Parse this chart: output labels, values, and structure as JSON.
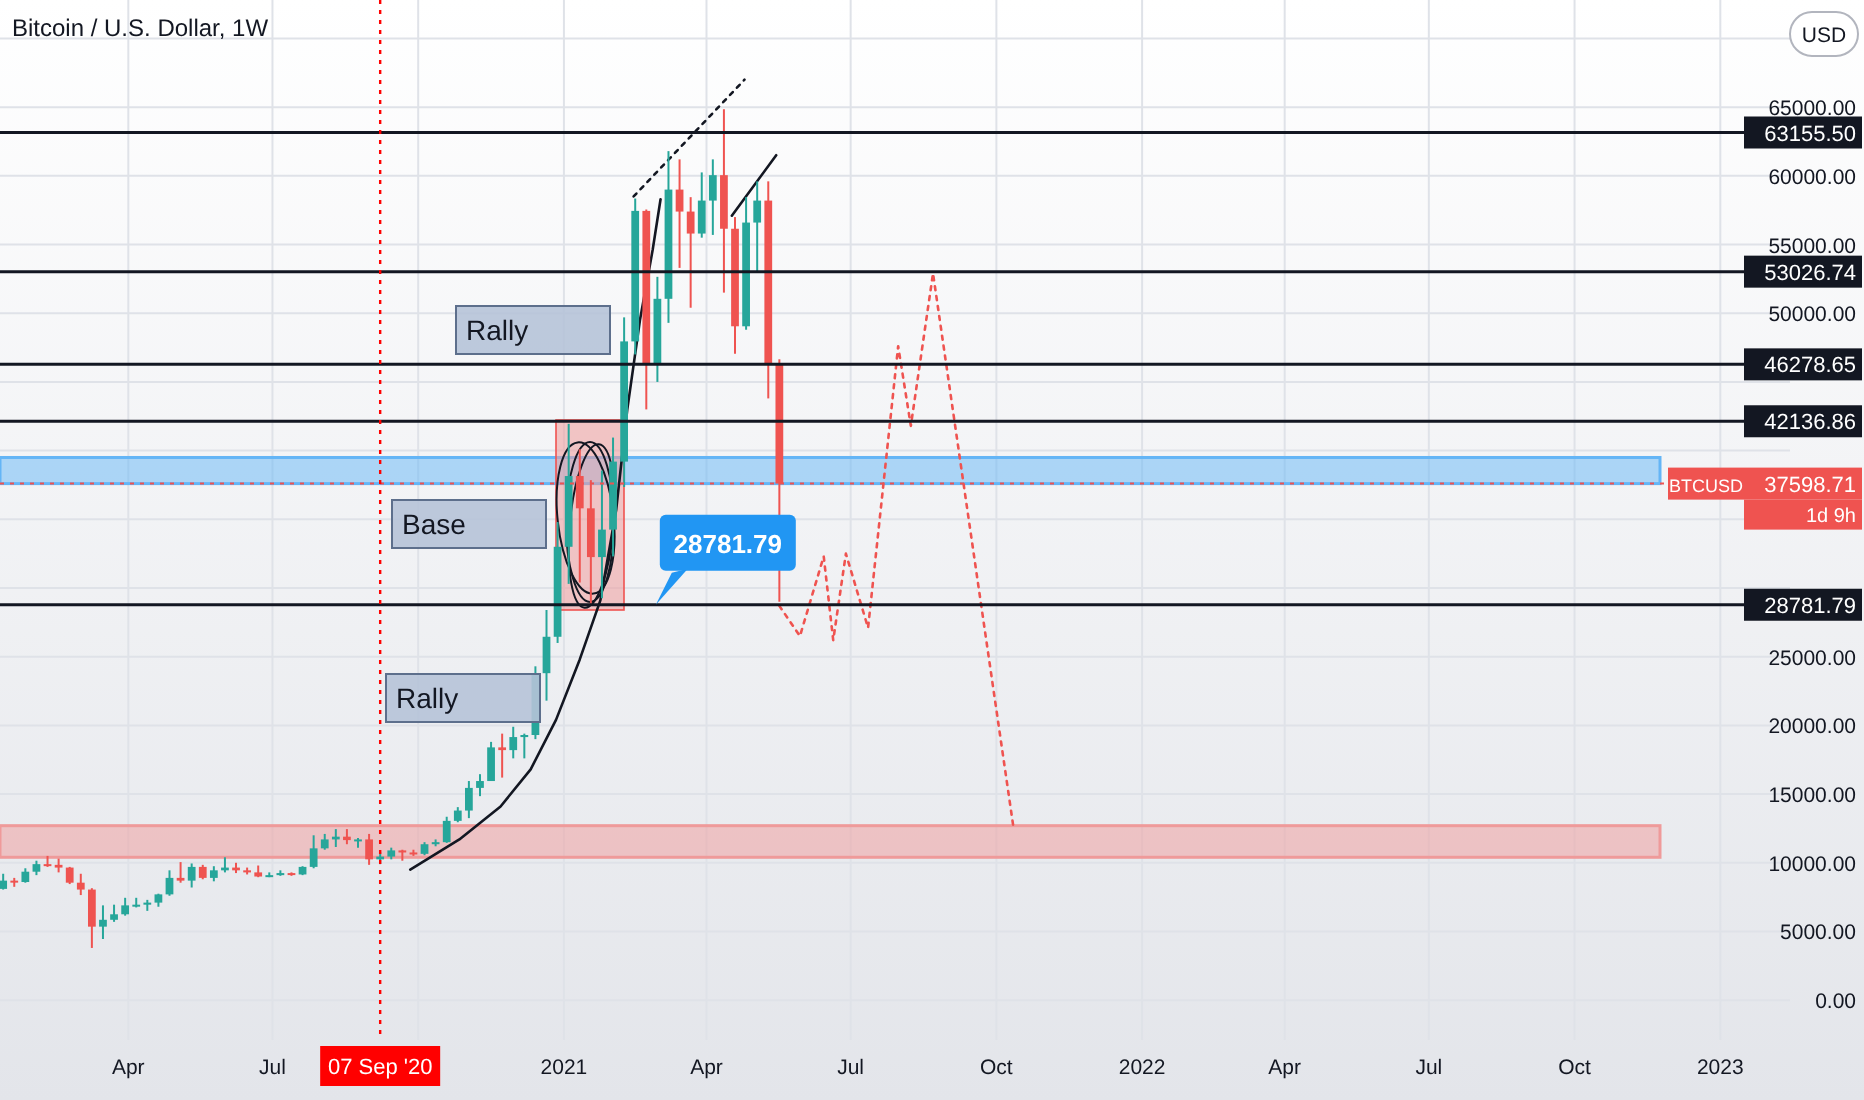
{
  "chart_data": {
    "type": "candlestick",
    "title": "Bitcoin / U.S. Dollar, 1W",
    "x": [
      "2020-01-13",
      "2020-01-20",
      "2020-01-27",
      "2020-02-03",
      "2020-02-10",
      "2020-02-17",
      "2020-02-24",
      "2020-03-02",
      "2020-03-09",
      "2020-03-16",
      "2020-03-23",
      "2020-03-30",
      "2020-04-06",
      "2020-04-13",
      "2020-04-20",
      "2020-04-27",
      "2020-05-04",
      "2020-05-11",
      "2020-05-18",
      "2020-05-25",
      "2020-06-01",
      "2020-06-08",
      "2020-06-15",
      "2020-06-22",
      "2020-06-29",
      "2020-07-06",
      "2020-07-13",
      "2020-07-20",
      "2020-07-27",
      "2020-08-03",
      "2020-08-10",
      "2020-08-17",
      "2020-08-24",
      "2020-08-31",
      "2020-09-07",
      "2020-09-14",
      "2020-09-21",
      "2020-09-28",
      "2020-10-05",
      "2020-10-12",
      "2020-10-19",
      "2020-10-26",
      "2020-11-02",
      "2020-11-09",
      "2020-11-16",
      "2020-11-23",
      "2020-11-30",
      "2020-12-07",
      "2020-12-14",
      "2020-12-21",
      "2020-12-28",
      "2021-01-04",
      "2021-01-11",
      "2021-01-18",
      "2021-01-25",
      "2021-02-01",
      "2021-02-08",
      "2021-02-15",
      "2021-02-22",
      "2021-03-01",
      "2021-03-08",
      "2021-03-15",
      "2021-03-22",
      "2021-03-29",
      "2021-04-05",
      "2021-04-12",
      "2021-04-19",
      "2021-04-26",
      "2021-05-03",
      "2021-05-10",
      "2021-05-17"
    ],
    "ohlc": [
      [
        8100,
        9200,
        8050,
        8700
      ],
      [
        8700,
        8900,
        8250,
        8600
      ],
      [
        8600,
        9600,
        8550,
        9350
      ],
      [
        9350,
        10150,
        9100,
        9900
      ],
      [
        9900,
        10500,
        9700,
        9850
      ],
      [
        9850,
        10300,
        9300,
        9650
      ],
      [
        9650,
        9700,
        8450,
        8550
      ],
      [
        8550,
        9200,
        7650,
        8050
      ],
      [
        8050,
        8150,
        3800,
        5350
      ],
      [
        5350,
        6900,
        4450,
        5850
      ],
      [
        5850,
        6950,
        5700,
        6250
      ],
      [
        6250,
        7450,
        6150,
        6900
      ],
      [
        6900,
        7450,
        6750,
        6950
      ],
      [
        6950,
        7300,
        6500,
        7100
      ],
      [
        7100,
        7750,
        6800,
        7700
      ],
      [
        7700,
        9450,
        7600,
        8900
      ],
      [
        8900,
        10050,
        8550,
        8700
      ],
      [
        8700,
        9950,
        8200,
        9700
      ],
      [
        9700,
        9850,
        8800,
        8900
      ],
      [
        8900,
        9750,
        8650,
        9450
      ],
      [
        9450,
        10400,
        9300,
        9650
      ],
      [
        9650,
        10000,
        9250,
        9450
      ],
      [
        9450,
        9650,
        9150,
        9300
      ],
      [
        9300,
        9800,
        8950,
        9000
      ],
      [
        9000,
        9300,
        8950,
        9100
      ],
      [
        9100,
        9450,
        9050,
        9250
      ],
      [
        9250,
        9300,
        9050,
        9150
      ],
      [
        9150,
        9750,
        9100,
        9700
      ],
      [
        9700,
        12000,
        9600,
        11050
      ],
      [
        11050,
        12100,
        10950,
        11700
      ],
      [
        11700,
        12450,
        11150,
        11900
      ],
      [
        11900,
        12450,
        11350,
        11650
      ],
      [
        11650,
        11800,
        11100,
        11700
      ],
      [
        11700,
        12100,
        9850,
        10250
      ],
      [
        10250,
        10800,
        9900,
        10450
      ],
      [
        10450,
        11100,
        10250,
        10900
      ],
      [
        10900,
        10950,
        10150,
        10750
      ],
      [
        10750,
        10950,
        10500,
        10650
      ],
      [
        10650,
        11500,
        10550,
        11350
      ],
      [
        11350,
        11700,
        11200,
        11500
      ],
      [
        11500,
        13350,
        11450,
        13050
      ],
      [
        13050,
        14050,
        12950,
        13800
      ],
      [
        13800,
        15950,
        13250,
        15450
      ],
      [
        15450,
        16450,
        14850,
        15950
      ],
      [
        15950,
        18800,
        15950,
        18400
      ],
      [
        18400,
        19400,
        16200,
        18200
      ],
      [
        18200,
        19900,
        17600,
        19150
      ],
      [
        19150,
        19400,
        17600,
        19300
      ],
      [
        19300,
        24300,
        19000,
        23800
      ],
      [
        23800,
        28400,
        21800,
        26450
      ],
      [
        26450,
        34800,
        26000,
        33000
      ],
      [
        33000,
        41950,
        30300,
        38150
      ],
      [
        38150,
        40100,
        30400,
        35800
      ],
      [
        35800,
        37850,
        28800,
        32250
      ],
      [
        32250,
        38550,
        29250,
        34250
      ],
      [
        34250,
        40950,
        32300,
        39200
      ],
      [
        39200,
        49700,
        37350,
        47950
      ],
      [
        47950,
        58350,
        47000,
        57450
      ],
      [
        57450,
        57550,
        43000,
        46250
      ],
      [
        46250,
        52650,
        45000,
        51050
      ],
      [
        51050,
        61800,
        49300,
        59000
      ],
      [
        59000,
        61200,
        53300,
        57400
      ],
      [
        57400,
        58450,
        50400,
        55800
      ],
      [
        55800,
        60250,
        55500,
        58200
      ],
      [
        58200,
        61200,
        55700,
        60050
      ],
      [
        60050,
        64850,
        51500,
        56150
      ],
      [
        56150,
        57000,
        47050,
        49050
      ],
      [
        49050,
        58450,
        48800,
        56600
      ],
      [
        56600,
        59600,
        53000,
        58200
      ],
      [
        58200,
        59600,
        43800,
        46300
      ],
      [
        46300,
        46650,
        29000,
        37598.71
      ]
    ],
    "colors": [
      "#26a69a",
      "#ef5350",
      "#26a69a",
      "#26a69a",
      "#ef5350",
      "#ef5350",
      "#ef5350",
      "#ef5350",
      "#ef5350",
      "#26a69a",
      "#26a69a",
      "#26a69a",
      "#26a69a",
      "#26a69a",
      "#26a69a",
      "#26a69a",
      "#ef5350",
      "#26a69a",
      "#ef5350",
      "#26a69a",
      "#26a69a",
      "#ef5350",
      "#ef5350",
      "#ef5350",
      "#26a69a",
      "#26a69a",
      "#ef5350",
      "#26a69a",
      "#26a69a",
      "#26a69a",
      "#26a69a",
      "#ef5350",
      "#26a69a",
      "#ef5350",
      "#26a69a",
      "#26a69a",
      "#ef5350",
      "#ef5350",
      "#26a69a",
      "#26a69a",
      "#26a69a",
      "#26a69a",
      "#26a69a",
      "#26a69a",
      "#26a69a",
      "#ef5350",
      "#26a69a",
      "#26a69a",
      "#26a69a",
      "#26a69a",
      "#26a69a",
      "#26a69a",
      "#ef5350",
      "#ef5350",
      "#26a69a",
      "#26a69a",
      "#26a69a",
      "#26a69a",
      "#ef5350",
      "#26a69a",
      "#26a69a",
      "#ef5350",
      "#ef5350",
      "#26a69a",
      "#26a69a",
      "#ef5350",
      "#ef5350",
      "#26a69a",
      "#26a69a",
      "#ef5350",
      "#ef5350"
    ],
    "series": [
      {
        "type": "line",
        "color": "#131722",
        "line_style": "solid",
        "x": [
          "2020-09-26",
          "2020-10-27",
          "2020-11-22",
          "2020-12-11",
          "2020-12-27",
          "2021-01-11",
          "2021-01-24",
          "2021-02-03",
          "2021-02-10",
          "2021-02-18",
          "2021-02-26",
          "2021-03-03"
        ],
        "values": [
          9500,
          11700,
          14100,
          16800,
          20400,
          24800,
          29100,
          35700,
          43000,
          49500,
          54600,
          58300
        ]
      },
      {
        "type": "line",
        "color": "#131722",
        "line_style": "dotted",
        "x": [
          "2021-02-14",
          "2021-04-25"
        ],
        "values": [
          58500,
          67000
        ]
      },
      {
        "type": "line",
        "color": "#131722",
        "line_style": "solid",
        "x": [
          "2021-04-17",
          "2021-05-15"
        ],
        "values": [
          57100,
          61500
        ]
      },
      {
        "type": "line",
        "color": "#ef5350",
        "line_style": "dotted",
        "x": [
          "2021-05-17",
          "2021-05-30",
          "2021-06-14",
          "2021-06-20",
          "2021-06-28",
          "2021-07-12",
          "2021-07-31",
          "2021-08-08",
          "2021-08-22",
          "2021-10-12"
        ],
        "values": [
          28700,
          26500,
          32300,
          26200,
          32500,
          27100,
          47600,
          41800,
          52900,
          12400
        ]
      }
    ],
    "ref_lines": [
      {
        "axis": "y",
        "value": 63155.5,
        "label": "63155.50",
        "color": "#131722",
        "line_style": "solid"
      },
      {
        "axis": "y",
        "value": 53026.74,
        "label": "53026.74",
        "color": "#131722",
        "line_style": "solid"
      },
      {
        "axis": "y",
        "value": 46278.65,
        "label": "46278.65",
        "color": "#131722",
        "line_style": "solid"
      },
      {
        "axis": "y",
        "value": 42136.86,
        "label": "42136.86",
        "color": "#131722",
        "line_style": "solid"
      },
      {
        "axis": "y",
        "value": 28781.79,
        "label": "28781.79",
        "color": "#131722",
        "line_style": "solid"
      },
      {
        "axis": "y",
        "value": 37598.71,
        "label": "37598.71",
        "color": "#ef5350",
        "line_style": "dotted"
      },
      {
        "axis": "x",
        "value": "2020-09-07",
        "label": "07 Sep '20",
        "color": "#ff0000",
        "line_style": "dotted"
      }
    ],
    "bands": [
      {
        "axis": "y",
        "from": 37598.71,
        "to": 39500,
        "color": "#64b5f6"
      },
      {
        "axis": "y",
        "from": 10400,
        "to": 12700,
        "color": "#ef9a9a"
      }
    ],
    "annotations": [
      "Rally",
      "Base",
      "Rally",
      {
        "text": "28781.79",
        "x": "2021-02-28",
        "y": 28781.79
      },
      "BTCUSD",
      "1d 9h",
      "USD"
    ],
    "xlim": [
      "2020-01-11",
      "2023-02-14"
    ],
    "ylim": [
      -2900,
      72800
    ],
    "xticks": [
      {
        "value": "2020-04-01",
        "label": "Apr"
      },
      {
        "value": "2020-07-01",
        "label": "Jul"
      },
      {
        "value": "2020-10-01",
        "label": null
      },
      {
        "value": "2021-01-01",
        "label": "2021"
      },
      {
        "value": "2021-04-01",
        "label": "Apr"
      },
      {
        "value": "2021-07-01",
        "label": "Jul"
      },
      {
        "value": "2021-10-01",
        "label": "Oct"
      },
      {
        "value": "2022-01-01",
        "label": "2022"
      },
      {
        "value": "2022-04-01",
        "label": "Apr"
      },
      {
        "value": "2022-07-01",
        "label": "Jul"
      },
      {
        "value": "2022-10-01",
        "label": "Oct"
      },
      {
        "value": "2023-01-01",
        "label": "2023"
      }
    ],
    "yticks": [
      {
        "value": 0,
        "label": "0.00"
      },
      {
        "value": 5000,
        "label": "5000.00"
      },
      {
        "value": 10000,
        "label": "10000.00"
      },
      {
        "value": 15000,
        "label": "15000.00"
      },
      {
        "value": 20000,
        "label": "20000.00"
      },
      {
        "value": 25000,
        "label": "25000.00"
      },
      {
        "value": 30000,
        "label": null
      },
      {
        "value": 35000,
        "label": null
      },
      {
        "value": 40000,
        "label": null
      },
      {
        "value": 45000,
        "label": null
      },
      {
        "value": 50000,
        "label": "50000.00"
      },
      {
        "value": 55000,
        "label": "55000.00"
      },
      {
        "value": 60000,
        "label": "60000.00"
      },
      {
        "value": 65000,
        "label": "65000.00"
      },
      {
        "value": 70000,
        "label": null
      }
    ],
    "grid": true
  }
}
